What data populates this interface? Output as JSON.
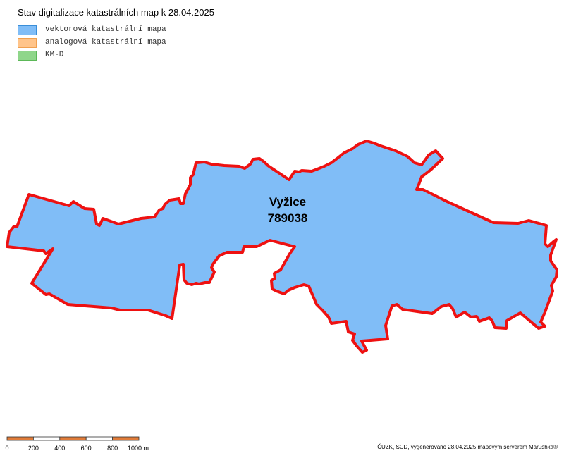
{
  "header": {
    "title": "Stav digitalizace katastrálních map k 28.04.2025"
  },
  "legend": [
    "vektorová katastrální mapa",
    "analogová katastrální mapa",
    "KM-D"
  ],
  "map": {
    "label": {
      "name": "Vyžice",
      "code": "789038"
    }
  },
  "scale_bar": {
    "labels": [
      "0",
      "200",
      "400",
      "600",
      "800",
      "1000 m"
    ]
  },
  "footer": {
    "credit": "ČUZK, SCD, vygenerováno 28.04.2025 mapovým serverem Marushka®"
  }
}
